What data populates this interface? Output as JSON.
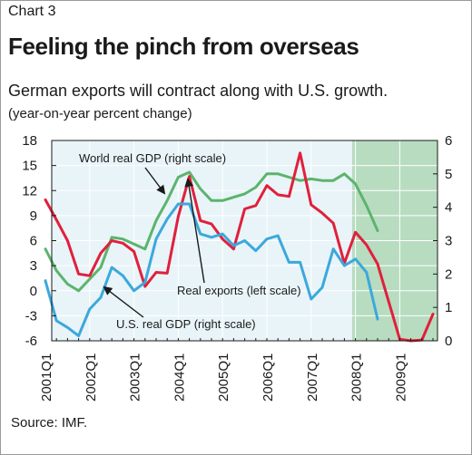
{
  "header": {
    "chart_label": "Chart 3",
    "title": "Feeling the pinch from overseas",
    "subtitle": "German exports will contract along with U.S. growth.",
    "unit": "(year-on-year percent change)"
  },
  "footer": {
    "source": "Source: IMF."
  },
  "colors": {
    "background": "#ffffff",
    "plot_background": "#e8f4f8",
    "forecast_shade": "#b8dcc0",
    "world_gdp": "#5cb46c",
    "real_exports": "#e0203c",
    "us_gdp": "#3ca8dc",
    "grid": "#ffffff"
  },
  "chart_data": {
    "type": "line",
    "x_tick_labels": [
      "2001Q1",
      "2002Q1",
      "2003Q1",
      "2004Q1",
      "2005Q1",
      "2006Q1",
      "2007Q1",
      "2008Q1",
      "2009Q1"
    ],
    "x_tick_index": [
      0,
      4,
      8,
      12,
      16,
      20,
      24,
      28,
      32
    ],
    "left_axis": {
      "ylim": [
        -6,
        18
      ],
      "ticks": [
        18,
        15,
        12,
        9,
        6,
        3,
        0,
        -3,
        -6
      ]
    },
    "right_axis": {
      "ylim": [
        0,
        6
      ],
      "ticks": [
        6,
        5,
        4,
        3,
        2,
        1,
        0
      ]
    },
    "forecast_from_index": 28,
    "grid": true,
    "series": [
      {
        "name": "World real GDP (right scale)",
        "axis": "right",
        "color_key": "world_gdp",
        "values": [
          2.75,
          2.1,
          1.7,
          1.5,
          1.85,
          2.2,
          3.1,
          3.05,
          2.9,
          2.75,
          3.6,
          4.2,
          4.9,
          5.05,
          4.55,
          4.2,
          4.2,
          4.3,
          4.4,
          4.6,
          5.0,
          5.0,
          4.9,
          4.8,
          4.85,
          4.8,
          4.8,
          5.0,
          4.7,
          4.05,
          3.3
        ]
      },
      {
        "name": "Real exports (left scale)",
        "axis": "left",
        "color_key": "real_exports",
        "values": [
          10.9,
          8.5,
          6.0,
          2.0,
          1.8,
          4.5,
          6.0,
          5.7,
          4.7,
          0.5,
          2.2,
          2.1,
          8.9,
          13.7,
          8.4,
          8.0,
          6.2,
          5.0,
          9.8,
          10.2,
          12.6,
          11.5,
          11.3,
          16.5,
          10.3,
          9.3,
          8.1,
          3.3,
          7.0,
          5.5,
          3.2,
          -1.3,
          -5.8,
          -6.0,
          -5.9,
          -2.8
        ]
      },
      {
        "name": "U.S. real GDP (right scale)",
        "axis": "right",
        "color_key": "us_gdp",
        "values": [
          1.8,
          0.6,
          0.4,
          0.15,
          0.95,
          1.3,
          2.2,
          1.95,
          1.5,
          1.75,
          3.05,
          3.65,
          4.1,
          4.1,
          3.2,
          3.1,
          3.2,
          2.85,
          3.0,
          2.7,
          3.05,
          3.15,
          2.35,
          2.35,
          1.25,
          1.6,
          2.75,
          2.25,
          2.45,
          2.05,
          0.65
        ]
      }
    ],
    "annotations": [
      {
        "text": "World real GDP (right scale)",
        "series": 0
      },
      {
        "text": "Real exports (left scale)",
        "series": 1
      },
      {
        "text": "U.S. real GDP (right scale)",
        "series": 2
      }
    ]
  }
}
